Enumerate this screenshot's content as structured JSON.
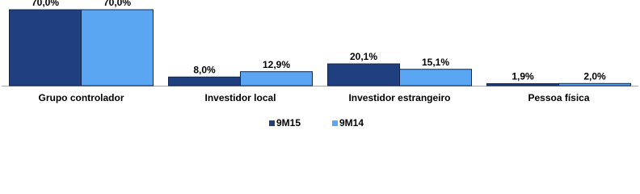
{
  "chart_data": {
    "type": "bar",
    "categories": [
      "Grupo controlador",
      "Investidor local",
      "Investidor estrangeiro",
      "Pessoa física"
    ],
    "series": [
      {
        "name": "9M15",
        "color": "#1f3f7e",
        "values": [
          70.0,
          8.0,
          20.1,
          1.9
        ],
        "value_labels": [
          "70,0%",
          "8,0%",
          "20,1%",
          "1,9%"
        ]
      },
      {
        "name": "9M14",
        "color": "#5ba6f2",
        "values": [
          70.0,
          12.9,
          15.1,
          2.0
        ],
        "value_labels": [
          "70,0%",
          "12,9%",
          "15,1%",
          "2,0%"
        ]
      }
    ],
    "legend": "bottom"
  }
}
